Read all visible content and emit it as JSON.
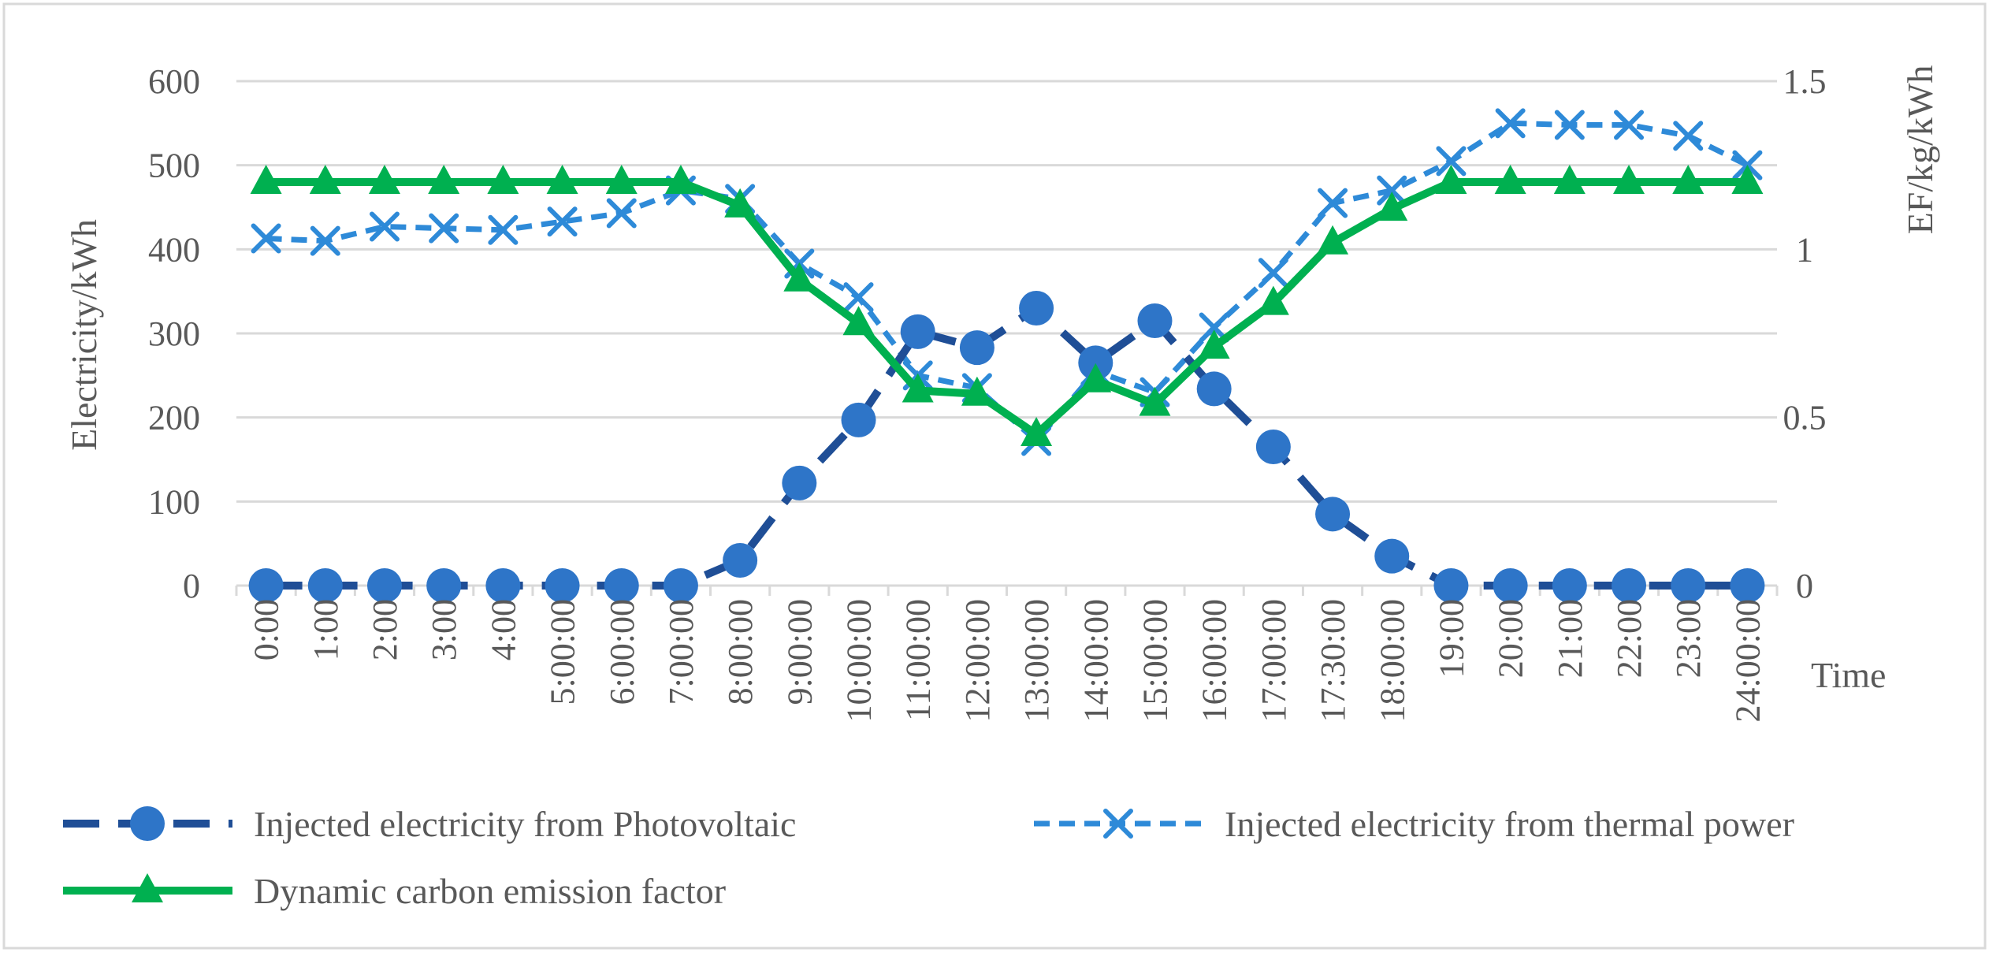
{
  "chart_data": {
    "type": "line",
    "title": "",
    "xlabel": "Time",
    "ylabel": "Electricity/kWh",
    "y2label": "EF/kg/kWh",
    "ylim": [
      0,
      600
    ],
    "y2lim": [
      0,
      1.5
    ],
    "yticks": [
      "0",
      "100",
      "200",
      "300",
      "400",
      "500",
      "600"
    ],
    "y2ticks": [
      "0",
      "0.5",
      "1",
      "1.5"
    ],
    "categories": [
      "0:00",
      "1:00",
      "2:00",
      "3:00",
      "4:00",
      "5:00:00",
      "6:00:00",
      "7:00:00",
      "8:00:00",
      "9:00:00",
      "10:00:00",
      "11:00:00",
      "12:00:00",
      "13:00:00",
      "14:00:00",
      "15:00:00",
      "16:00:00",
      "17:00:00",
      "17:30:00",
      "18:00:00",
      "19:00",
      "20:00",
      "21:00",
      "22:00",
      "23:00",
      "24:00:00"
    ],
    "series": [
      {
        "name": "Injected electricity from Photovoltaic",
        "axis": "left",
        "values": [
          0,
          0,
          0,
          0,
          0,
          0,
          0,
          0,
          30,
          122,
          197,
          302,
          283,
          330,
          265,
          315,
          234,
          165,
          85,
          35,
          0,
          0,
          0,
          0,
          0,
          0
        ],
        "color": "#1f4e96",
        "marker_color": "#2e75c8",
        "marker": "circle",
        "line_style": "long-dash"
      },
      {
        "name": "Injected electricity from thermal power",
        "axis": "left",
        "values": [
          413,
          410,
          427,
          425,
          423,
          433,
          443,
          470,
          460,
          383,
          343,
          250,
          235,
          172,
          255,
          230,
          307,
          372,
          455,
          470,
          505,
          550,
          548,
          548,
          535,
          500
        ],
        "color": "#2e8ad8",
        "marker": "x",
        "line_style": "short-dash"
      },
      {
        "name": "Dynamic carbon emission factor",
        "axis": "right",
        "values": [
          1.2,
          1.2,
          1.2,
          1.2,
          1.2,
          1.2,
          1.2,
          1.2,
          1.13,
          0.91,
          0.78,
          0.58,
          0.57,
          0.45,
          0.61,
          0.54,
          0.71,
          0.84,
          1.02,
          1.12,
          1.2,
          1.2,
          1.2,
          1.2,
          1.2,
          1.2
        ],
        "color": "#00b050",
        "marker": "triangle",
        "line_style": "solid"
      }
    ],
    "legend": [
      "Injected electricity from Photovoltaic",
      "Injected electricity from thermal power",
      "Dynamic carbon emission factor"
    ],
    "legend_position": "bottom",
    "grid": true
  }
}
